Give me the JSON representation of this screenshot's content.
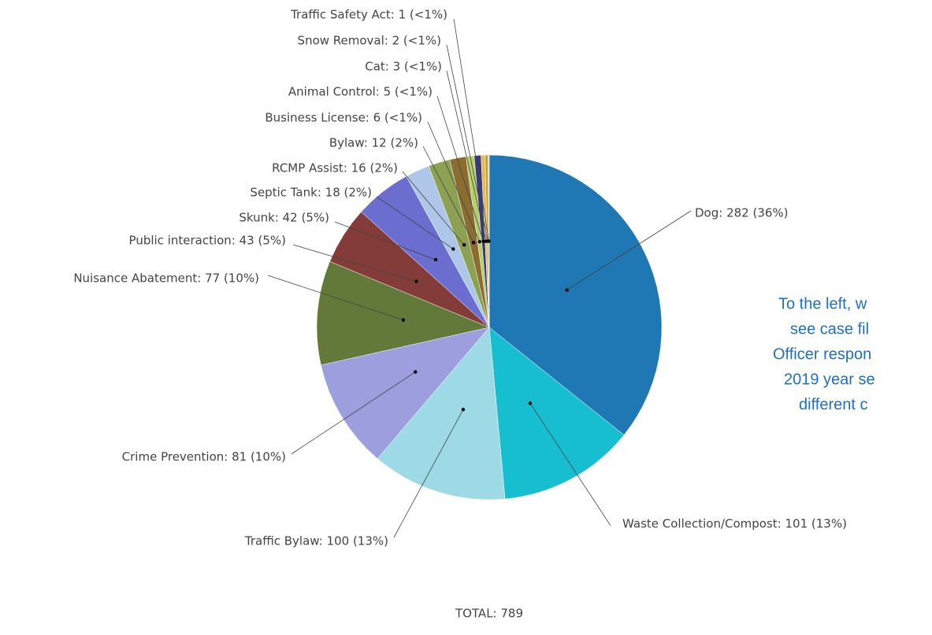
{
  "chart_data": {
    "type": "pie",
    "categories": [
      "Dog",
      "Waste Collection/Compost",
      "Traffic Bylaw",
      "Crime Prevention",
      "Nuisance Abatement",
      "Public interaction",
      "Skunk",
      "Septic Tank",
      "RCMP Assist",
      "Bylaw",
      "Business License",
      "Animal Control",
      "Cat",
      "Snow Removal",
      "Traffic Safety Act"
    ],
    "values": [
      282,
      101,
      100,
      81,
      77,
      43,
      42,
      18,
      16,
      12,
      6,
      5,
      3,
      2,
      1
    ],
    "value_labels": [
      "Dog: 282 (36%)",
      "Waste Collection/Compost: 101 (13%)",
      "Traffic Bylaw: 100 (13%)",
      "Crime Prevention: 81 (10%)",
      "Nuisance Abatement: 77 (10%)",
      "Public interaction: 43 (5%)",
      "Skunk: 42 (5%)",
      "Septic Tank: 18 (2%)",
      "RCMP Assist: 16 (2%)",
      "Bylaw: 12 (2%)",
      "Business License: 6 (<1%)",
      "Animal Control: 5 (<1%)",
      "Cat: 3 (<1%)",
      "Snow Removal: 2 (<1%)",
      "Traffic Safety Act: 1 (<1%)"
    ],
    "colors": [
      "#1f77b4",
      "#17becf",
      "#9edae5",
      "#9c9ede",
      "#637939",
      "#843c39",
      "#6b6ecf",
      "#aec7e8",
      "#8ca252",
      "#8c6d31",
      "#b5cf6b",
      "#393b79",
      "#e7ba52",
      "#bd9e39",
      "#e7cb94"
    ],
    "annotation": "TOTAL: 789"
  },
  "side_text": [
    "To the left, w",
    "see case fil",
    "Officer respon",
    "2019 year se",
    "different c"
  ]
}
